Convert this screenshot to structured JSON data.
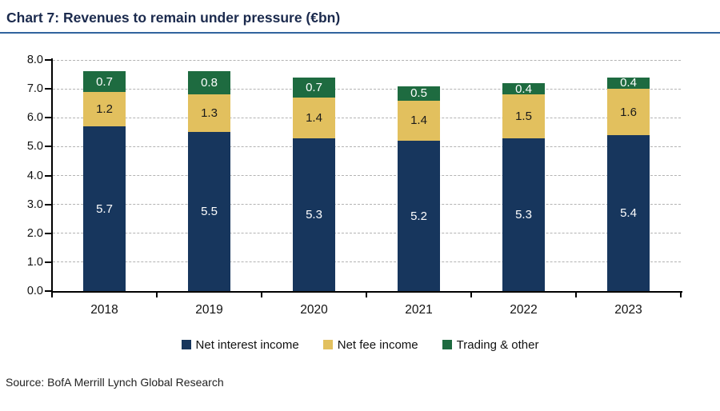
{
  "title": "Chart 7: Revenues to remain under pressure (€bn)",
  "source": "Source: BofA Merrill Lynch Global Research",
  "colors": {
    "title_navy": "#1b2a4d",
    "underline_blue": "#31649e",
    "axis_black": "#000000",
    "gridline_gray": "#b3b3b3"
  },
  "chart_data": {
    "type": "bar",
    "stacked": true,
    "title": "Chart 7: Revenues to remain under pressure (€bn)",
    "categories": [
      "2018",
      "2019",
      "2020",
      "2021",
      "2022",
      "2023"
    ],
    "series": [
      {
        "name": "Net interest income",
        "color": "#17365d",
        "label_color": "#ffffff",
        "values": [
          5.7,
          5.5,
          5.3,
          5.2,
          5.3,
          5.4
        ]
      },
      {
        "name": "Net fee income",
        "color": "#e2c05e",
        "label_color": "#1a1a1a",
        "values": [
          1.2,
          1.3,
          1.4,
          1.4,
          1.5,
          1.6
        ]
      },
      {
        "name": "Trading & other",
        "color": "#1e6b40",
        "label_color": "#ffffff",
        "values": [
          0.7,
          0.8,
          0.7,
          0.5,
          0.4,
          0.4
        ]
      }
    ],
    "ylim": [
      0,
      8
    ],
    "ytick_step": 1,
    "ytick_labels": [
      "0.0",
      "1.0",
      "2.0",
      "3.0",
      "4.0",
      "5.0",
      "6.0",
      "7.0",
      "8.0"
    ],
    "xlabel": "",
    "ylabel": "",
    "grid": "horizontal-dashed",
    "legend_position": "bottom",
    "data_labels": "one-decimal-inside-segments"
  }
}
